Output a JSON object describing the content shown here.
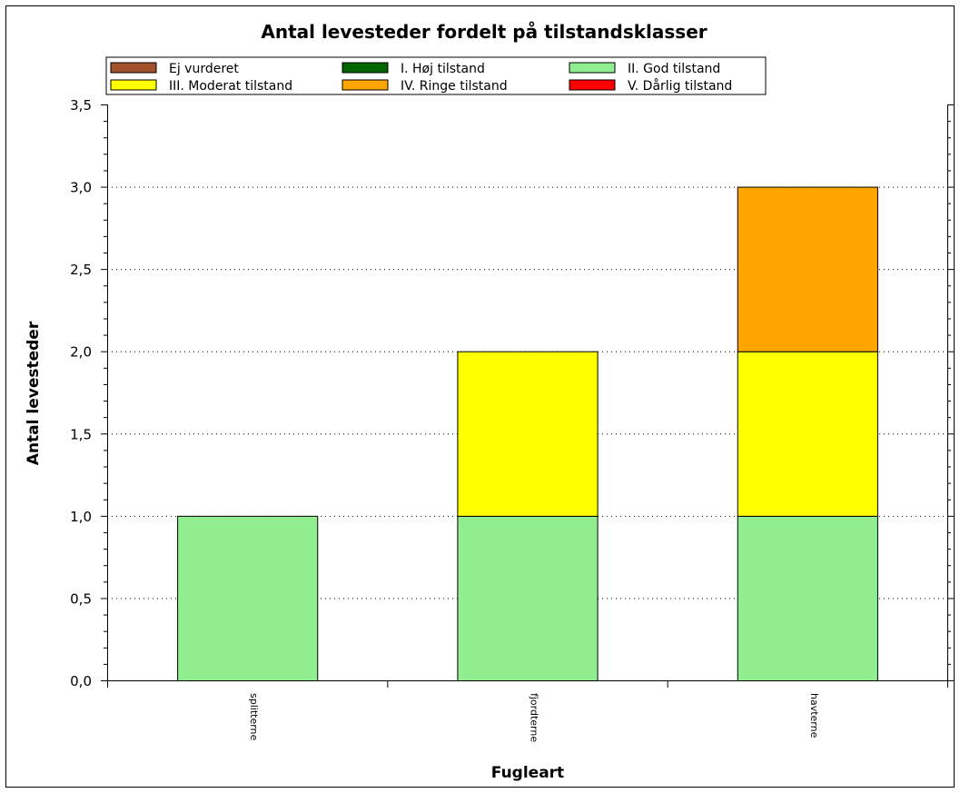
{
  "chart_data": {
    "type": "bar",
    "stacked": true,
    "title": "Antal levesteder fordelt på tilstandsklasser",
    "xlabel": "Fugleart",
    "ylabel": "Antal levesteder",
    "ylim": [
      0,
      3.5
    ],
    "ytick_step": 0.5,
    "ytick_labels": [
      "0,0",
      "0,5",
      "1,0",
      "1,5",
      "2,0",
      "2,5",
      "3,0",
      "3,5"
    ],
    "grid": "horizontal dotted",
    "legend_position": "top",
    "categories": [
      "splitterne",
      "fjordterne",
      "havterne"
    ],
    "series": [
      {
        "name": "Ej vurderet",
        "color": "#a0522d",
        "values": [
          0,
          0,
          0
        ]
      },
      {
        "name": "I. Høj tilstand",
        "color": "#006400",
        "values": [
          0,
          0,
          0
        ]
      },
      {
        "name": "II. God tilstand",
        "color": "#90ee90",
        "values": [
          1,
          1,
          1
        ]
      },
      {
        "name": "III. Moderat tilstand",
        "color": "#ffff00",
        "values": [
          0,
          1,
          1
        ]
      },
      {
        "name": "IV. Ringe tilstand",
        "color": "#ffa500",
        "values": [
          0,
          0,
          1
        ]
      },
      {
        "name": "V. Dårlig tilstand",
        "color": "#ff0000",
        "values": [
          0,
          0,
          0
        ]
      }
    ]
  }
}
